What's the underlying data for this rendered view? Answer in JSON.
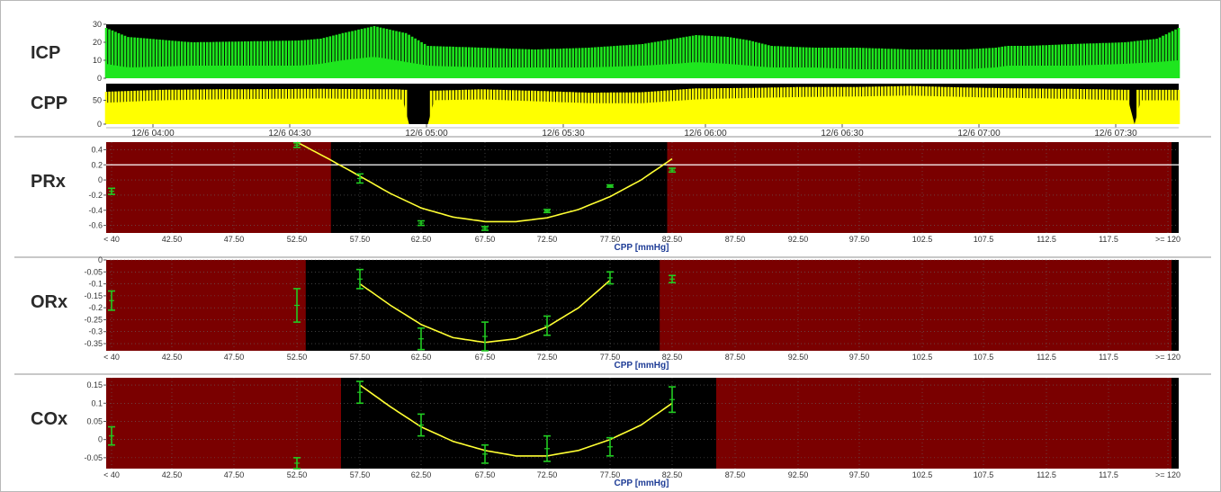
{
  "chart_data": [
    {
      "id": "icp",
      "type": "area",
      "panel_label": "ICP",
      "ylim": [
        0,
        30
      ],
      "y_ticks": [
        "0",
        "10",
        "20",
        "30"
      ],
      "series": [
        {
          "color": "#1ee61e",
          "envelope_x": [
            0,
            0.02,
            0.08,
            0.18,
            0.2,
            0.22,
            0.25,
            0.28,
            0.3,
            0.35,
            0.4,
            0.45,
            0.5,
            0.53,
            0.55,
            0.58,
            0.6,
            0.62,
            0.66,
            0.7,
            0.75,
            0.8,
            0.83,
            0.84,
            0.86,
            0.9,
            0.95,
            0.98,
            1.0
          ],
          "peak": [
            28,
            23,
            20,
            21,
            22,
            25,
            29,
            25,
            18,
            17,
            16,
            17,
            19,
            22,
            24,
            23,
            21,
            18,
            17,
            17,
            16,
            16,
            17,
            18,
            18,
            19,
            20,
            22,
            28
          ],
          "trough": [
            8,
            6,
            7,
            7,
            8,
            10,
            12,
            9,
            7,
            6,
            6,
            6,
            7,
            8,
            9,
            8,
            7,
            6,
            6,
            5,
            5,
            5,
            6,
            7,
            7,
            7,
            8,
            9,
            10
          ]
        }
      ]
    },
    {
      "id": "cpp",
      "type": "area",
      "panel_label": "CPP",
      "ylim": [
        0,
        85
      ],
      "y_ticks": [
        "0",
        "50"
      ],
      "x_tick_labels": [
        "12/6 04:00",
        "12/6 04:30",
        "12/6 05:00",
        "12/6 05:30",
        "12/6 06:00",
        "12/6 06:30",
        "12/6 07:00",
        "12/6 07:30"
      ],
      "series": [
        {
          "color": "#ffff00",
          "envelope_x": [
            0,
            0.05,
            0.1,
            0.2,
            0.27,
            0.3,
            0.35,
            0.4,
            0.45,
            0.5,
            0.55,
            0.6,
            0.65,
            0.7,
            0.75,
            0.8,
            0.85,
            0.9,
            0.95,
            1.0
          ],
          "peak": [
            68,
            72,
            73,
            74,
            73,
            70,
            73,
            70,
            66,
            67,
            75,
            76,
            78,
            78,
            80,
            77,
            75,
            74,
            72,
            72
          ],
          "trough": [
            45,
            50,
            52,
            54,
            52,
            50,
            52,
            48,
            44,
            44,
            52,
            55,
            57,
            58,
            60,
            57,
            55,
            53,
            50,
            50
          ]
        }
      ],
      "gaps": [
        [
          0.281,
          0.3
        ],
        [
          0.953,
          0.96
        ]
      ]
    },
    {
      "id": "prx",
      "type": "scatter",
      "panel_label": "PRx",
      "xlabel": "CPP [mmHg]",
      "ylim": [
        -0.7,
        0.5
      ],
      "y_ticks": [
        "-0.6",
        "-0.4",
        "-0.2",
        "0",
        "0.2",
        "0.4"
      ],
      "x_tick_labels": [
        "< 40",
        "42.50",
        "47.50",
        "52.50",
        "57.50",
        "62.50",
        "67.50",
        "72.50",
        "77.50",
        "82.50",
        "87.50",
        "92.50",
        "97.50",
        "102.5",
        "107.5",
        "112.5",
        "117.5",
        ">= 120"
      ],
      "threshold_line": 0.2,
      "optimal_range": [
        55.2,
        82.1
      ],
      "points": [
        {
          "x": 40,
          "y": -0.15,
          "err": 0.04
        },
        {
          "x": 52.5,
          "y": 0.46,
          "err": 0.03
        },
        {
          "x": 57.5,
          "y": 0.02,
          "err": 0.06
        },
        {
          "x": 62.5,
          "y": -0.57,
          "err": 0.03
        },
        {
          "x": 67.5,
          "y": -0.64,
          "err": 0.025
        },
        {
          "x": 72.5,
          "y": -0.41,
          "err": 0.02
        },
        {
          "x": 77.5,
          "y": -0.08,
          "err": 0.015
        },
        {
          "x": 82.5,
          "y": 0.13,
          "err": 0.025
        }
      ],
      "fit_curve": {
        "x": [
          52.5,
          55,
          57.5,
          60,
          62.5,
          65,
          67.5,
          70,
          72.5,
          75,
          77.5,
          80,
          82.5
        ],
        "y": [
          0.5,
          0.28,
          0.05,
          -0.18,
          -0.37,
          -0.49,
          -0.55,
          -0.55,
          -0.5,
          -0.39,
          -0.22,
          0.0,
          0.28
        ]
      }
    },
    {
      "id": "orx",
      "type": "scatter",
      "panel_label": "ORx",
      "xlabel": "CPP [mmHg]",
      "ylim": [
        -0.38,
        0.0
      ],
      "y_ticks": [
        "-0.35",
        "-0.3",
        "-0.25",
        "-0.2",
        "-0.15",
        "-0.1",
        "-0.05",
        "0"
      ],
      "x_tick_labels": [
        "< 40",
        "42.50",
        "47.50",
        "52.50",
        "57.50",
        "62.50",
        "67.50",
        "72.50",
        "77.50",
        "82.50",
        "87.50",
        "92.50",
        "97.50",
        "102.5",
        "107.5",
        "112.5",
        "117.5",
        ">= 120"
      ],
      "optimal_range": [
        53.2,
        81.5
      ],
      "points": [
        {
          "x": 40,
          "y": -0.17,
          "err": 0.04
        },
        {
          "x": 52.5,
          "y": -0.19,
          "err": 0.07
        },
        {
          "x": 57.5,
          "y": -0.08,
          "err": 0.04
        },
        {
          "x": 62.5,
          "y": -0.33,
          "err": 0.045
        },
        {
          "x": 67.5,
          "y": -0.32,
          "err": 0.06
        },
        {
          "x": 72.5,
          "y": -0.275,
          "err": 0.04
        },
        {
          "x": 77.5,
          "y": -0.075,
          "err": 0.025
        },
        {
          "x": 82.5,
          "y": -0.08,
          "err": 0.015
        }
      ],
      "fit_curve": {
        "x": [
          57.5,
          60,
          62.5,
          65,
          67.5,
          70,
          72.5,
          75,
          77.5
        ],
        "y": [
          -0.1,
          -0.19,
          -0.27,
          -0.325,
          -0.345,
          -0.33,
          -0.28,
          -0.2,
          -0.085
        ]
      }
    },
    {
      "id": "cox",
      "type": "scatter",
      "panel_label": "COx",
      "xlabel": "CPP [mmHg]",
      "ylim": [
        -0.08,
        0.17
      ],
      "y_ticks": [
        "-0.05",
        "0",
        "0.05",
        "0.1",
        "0.15"
      ],
      "x_tick_labels": [
        "< 40",
        "42.50",
        "47.50",
        "52.50",
        "57.50",
        "62.50",
        "67.50",
        "72.50",
        "77.50",
        "82.50",
        "87.50",
        "92.50",
        "97.50",
        "102.5",
        "107.5",
        "112.5",
        "117.5",
        ">= 120"
      ],
      "optimal_range": [
        56.0,
        86.0
      ],
      "points": [
        {
          "x": 40,
          "y": 0.01,
          "err": 0.025
        },
        {
          "x": 52.5,
          "y": -0.065,
          "err": 0.015
        },
        {
          "x": 57.5,
          "y": 0.13,
          "err": 0.03
        },
        {
          "x": 62.5,
          "y": 0.04,
          "err": 0.03
        },
        {
          "x": 67.5,
          "y": -0.04,
          "err": 0.025
        },
        {
          "x": 72.5,
          "y": -0.025,
          "err": 0.035
        },
        {
          "x": 77.5,
          "y": -0.02,
          "err": 0.025
        },
        {
          "x": 82.5,
          "y": 0.11,
          "err": 0.035
        }
      ],
      "fit_curve": {
        "x": [
          57.5,
          60,
          62.5,
          65,
          67.5,
          70,
          72.5,
          75,
          77.5,
          80,
          82.5
        ],
        "y": [
          0.15,
          0.09,
          0.035,
          -0.005,
          -0.03,
          -0.045,
          -0.045,
          -0.03,
          0.0,
          0.04,
          0.1
        ]
      }
    }
  ]
}
